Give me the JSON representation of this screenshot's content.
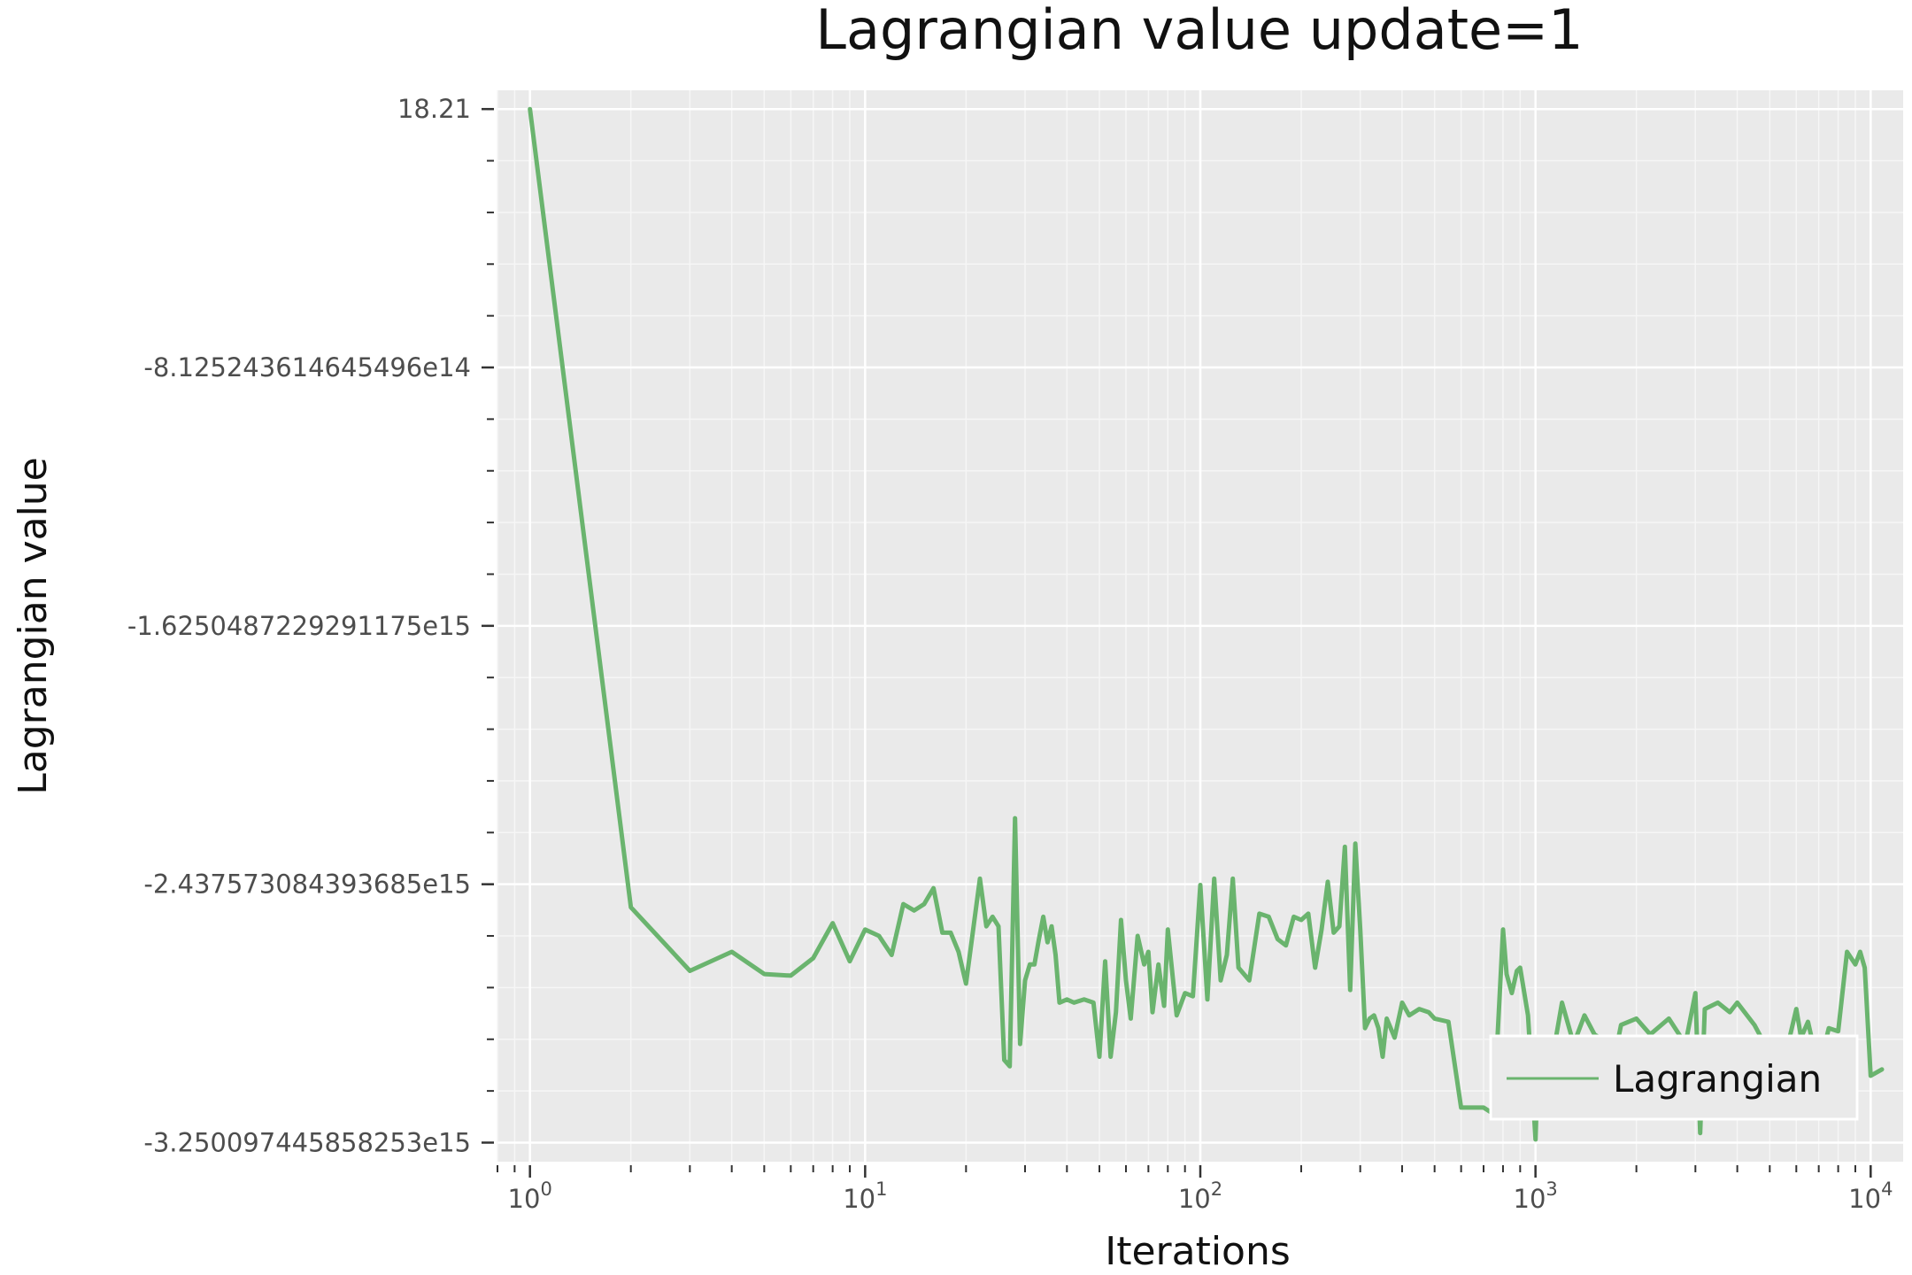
{
  "chart_data": {
    "type": "line",
    "title": "Lagrangian value update=1",
    "xlabel": "Iterations",
    "ylabel": "Lagrangian value",
    "x_scale": "log",
    "xlim": [
      0.8,
      12500
    ],
    "ylim": [
      -3310000000000000.0,
      59000000000000.0
    ],
    "x_ticks": [
      1,
      10,
      100,
      1000,
      10000
    ],
    "x_tick_labels": [
      {
        "base": "10",
        "exp": "0"
      },
      {
        "base": "10",
        "exp": "1"
      },
      {
        "base": "10",
        "exp": "2"
      },
      {
        "base": "10",
        "exp": "3"
      },
      {
        "base": "10",
        "exp": "4"
      }
    ],
    "y_ticks": [
      18.21,
      -812524361464549.6,
      -1625048722929117.5,
      -2437573084393685,
      -3250097445858253
    ],
    "y_tick_labels": [
      "18.21",
      "-8.125243614645496e14",
      "-1.6250487229291175e15",
      "-2.437573084393685e15",
      "-3.250097445858253e15"
    ],
    "grid": true,
    "legend_position": "lower-right",
    "series_color": "#6ab46e",
    "series": [
      {
        "name": "Lagrangian",
        "x": [
          1,
          2,
          3,
          4,
          5,
          6,
          7,
          8,
          9,
          10,
          11,
          12,
          13,
          14,
          15,
          16,
          17,
          18,
          19,
          20,
          22,
          23,
          24,
          25,
          26,
          27,
          28,
          29,
          30,
          31,
          32,
          33,
          34,
          35,
          36,
          37,
          38,
          40,
          42,
          45,
          48,
          50,
          52,
          54,
          56,
          58,
          60,
          62,
          65,
          68,
          70,
          72,
          75,
          78,
          80,
          85,
          90,
          95,
          100,
          105,
          110,
          115,
          120,
          125,
          130,
          140,
          150,
          160,
          170,
          180,
          190,
          200,
          210,
          220,
          230,
          240,
          250,
          260,
          270,
          280,
          290,
          300,
          310,
          320,
          330,
          340,
          350,
          360,
          380,
          400,
          420,
          450,
          480,
          500,
          550,
          600,
          650,
          700,
          750,
          800,
          820,
          850,
          880,
          900,
          950,
          1000,
          1020,
          1050,
          1100,
          1200,
          1300,
          1400,
          1500,
          1600,
          1700,
          1800,
          2000,
          2200,
          2500,
          2800,
          3000,
          3100,
          3200,
          3500,
          3800,
          4000,
          4500,
          5000,
          5500,
          6000,
          6200,
          6500,
          7000,
          7500,
          8000,
          8500,
          9000,
          9300,
          9600,
          10000,
          10800
        ],
        "y": [
          18.21,
          -2510000000000000.0,
          -2710000000000000.0,
          -2650000000000000.0,
          -2720000000000000.0,
          -2725000000000000.0,
          -2670000000000000.0,
          -2560000000000000.0,
          -2680000000000000.0,
          -2580000000000000.0,
          -2600000000000000.0,
          -2660000000000000.0,
          -2500000000000000.0,
          -2520000000000000.0,
          -2500000000000000.0,
          -2450000000000000.0,
          -2590000000000000.0,
          -2590000000000000.0,
          -2650000000000000.0,
          -2750000000000000.0,
          -2420000000000000.0,
          -2570000000000000.0,
          -2540000000000000.0,
          -2570000000000000.0,
          -2990000000000000.0,
          -3010000000000000.0,
          -2230000000000000.0,
          -2940000000000000.0,
          -2740000000000000.0,
          -2690000000000000.0,
          -2690000000000000.0,
          -2610000000000000.0,
          -2540000000000000.0,
          -2620000000000000.0,
          -2570000000000000.0,
          -2660000000000000.0,
          -2810000000000000.0,
          -2800000000000000.0,
          -2810000000000000.0,
          -2800000000000000.0,
          -2810000000000000.0,
          -2980000000000000.0,
          -2680000000000000.0,
          -2980000000000000.0,
          -2840000000000000.0,
          -2550000000000000.0,
          -2740000000000000.0,
          -2860000000000000.0,
          -2600000000000000.0,
          -2690000000000000.0,
          -2650000000000000.0,
          -2840000000000000.0,
          -2690000000000000.0,
          -2820000000000000.0,
          -2580000000000000.0,
          -2850000000000000.0,
          -2780000000000000.0,
          -2790000000000000.0,
          -2440000000000000.0,
          -2800000000000000.0,
          -2420000000000000.0,
          -2740000000000000.0,
          -2660000000000000.0,
          -2420000000000000.0,
          -2700000000000000.0,
          -2740000000000000.0,
          -2530000000000000.0,
          -2540000000000000.0,
          -2610000000000000.0,
          -2630000000000000.0,
          -2540000000000000.0,
          -2550000000000000.0,
          -2530000000000000.0,
          -2700000000000000.0,
          -2580000000000000.0,
          -2430000000000000.0,
          -2590000000000000.0,
          -2570000000000000.0,
          -2320000000000000.0,
          -2770000000000000.0,
          -2310000000000000.0,
          -2580000000000000.0,
          -2890000000000000.0,
          -2860000000000000.0,
          -2850000000000000.0,
          -2890000000000000.0,
          -2980000000000000.0,
          -2860000000000000.0,
          -2920000000000000.0,
          -2810000000000000.0,
          -2850000000000000.0,
          -2830000000000000.0,
          -2840000000000000.0,
          -2860000000000000.0,
          -2870000000000000.0,
          -3140000000000000.0,
          -3140000000000000.0,
          -3140000000000000.0,
          -3160000000000000.0,
          -2580000000000000.0,
          -2720000000000000.0,
          -2780000000000000.0,
          -2710000000000000.0,
          -2700000000000000.0,
          -2850000000000000.0,
          -3240000000000000.0,
          -2960000000000000.0,
          -2970000000000000.0,
          -3040000000000000.0,
          -2810000000000000.0,
          -2940000000000000.0,
          -2850000000000000.0,
          -2910000000000000.0,
          -2930000000000000.0,
          -3010000000000000.0,
          -2880000000000000.0,
          -2860000000000000.0,
          -2910000000000000.0,
          -2860000000000000.0,
          -2940000000000000.0,
          -2780000000000000.0,
          -3220000000000000.0,
          -2830000000000000.0,
          -2810000000000000.0,
          -2840000000000000.0,
          -2810000000000000.0,
          -2880000000000000.0,
          -2970000000000000.0,
          -3000000000000000.0,
          -2830000000000000.0,
          -2920000000000000.0,
          -2870000000000000.0,
          -3020000000000000.0,
          -2890000000000000.0,
          -2900000000000000.0,
          -2650000000000000.0,
          -2690000000000000.0,
          -2650000000000000.0,
          -2700000000000000.0,
          -3040000000000000.0,
          -3020000000000000.0
        ]
      }
    ]
  }
}
